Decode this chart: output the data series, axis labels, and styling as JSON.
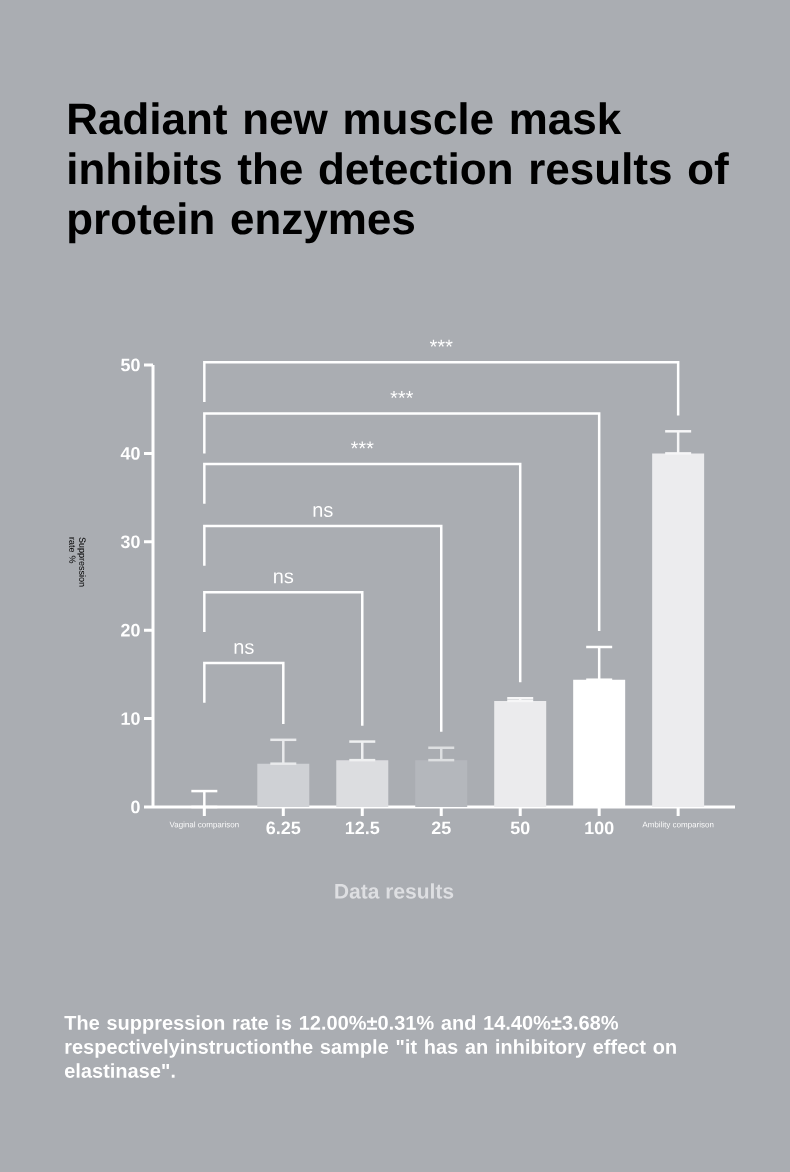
{
  "chart_data": {
    "type": "bar",
    "title": "Radiant new muscle mask inhibits the detection results of protein enzymes",
    "xlabel": "Data results",
    "ylabel": "Suppression rate %",
    "categories": [
      "Vaginal comparison",
      "6.25",
      "12.5",
      "25",
      "50",
      "100",
      "Ambility comparison"
    ],
    "values": [
      0,
      4.9,
      5.3,
      5.3,
      12.0,
      14.4,
      40.0
    ],
    "colors": [
      "#ffffff",
      "#cfd1d5",
      "#dcdde0",
      "#b4b7bc",
      "#ebebed",
      "#ffffff",
      "#ececee"
    ],
    "errors": [
      [
        0,
        1.8
      ],
      [
        4.9,
        7.6
      ],
      [
        5.3,
        7.4
      ],
      [
        5.3,
        6.7
      ],
      [
        12.0,
        12.3
      ],
      [
        14.4,
        18.1
      ],
      [
        40.0,
        42.5
      ]
    ],
    "ylim": [
      0,
      50
    ],
    "yticks": [
      0,
      10,
      20,
      30,
      40,
      50
    ],
    "annotations": [
      "ns",
      "ns",
      "ns",
      "***",
      "***",
      "***",
      "The suppression rate is 12.00%±0.31% and 14.40%±3.68% respectivelyinstructionthe sample \"it has an inhibitory effect on elastinase\"."
    ]
  }
}
